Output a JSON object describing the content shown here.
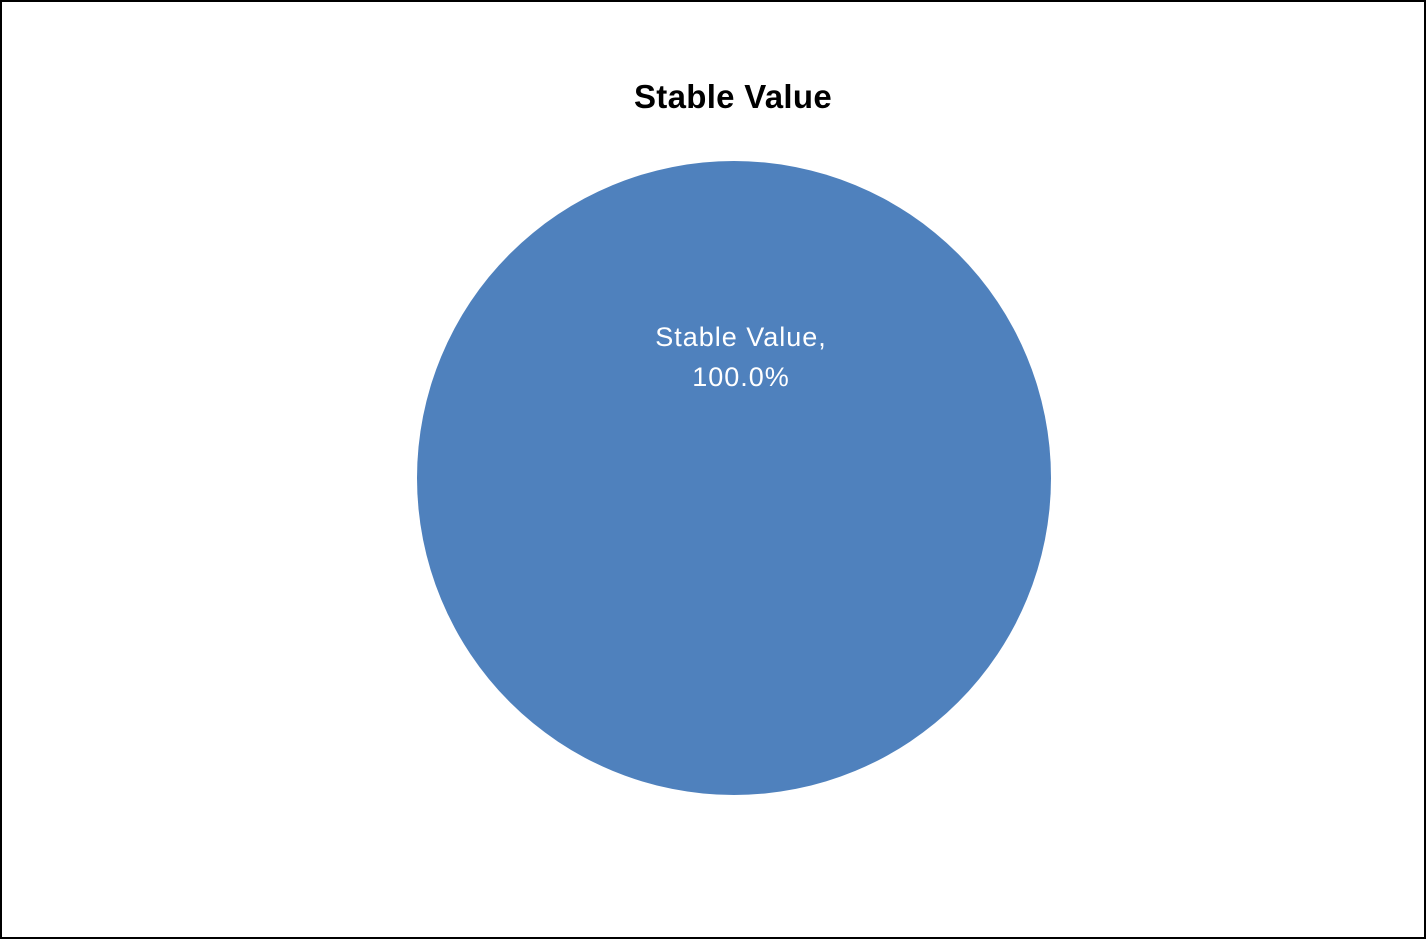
{
  "chart_data": {
    "type": "pie",
    "title": "Stable Value",
    "slices": [
      {
        "label": "Stable Value",
        "value": 100.0,
        "value_label": "100.0%",
        "color": "#4f81bd"
      }
    ],
    "legend": "none",
    "data_labels": "inside"
  }
}
